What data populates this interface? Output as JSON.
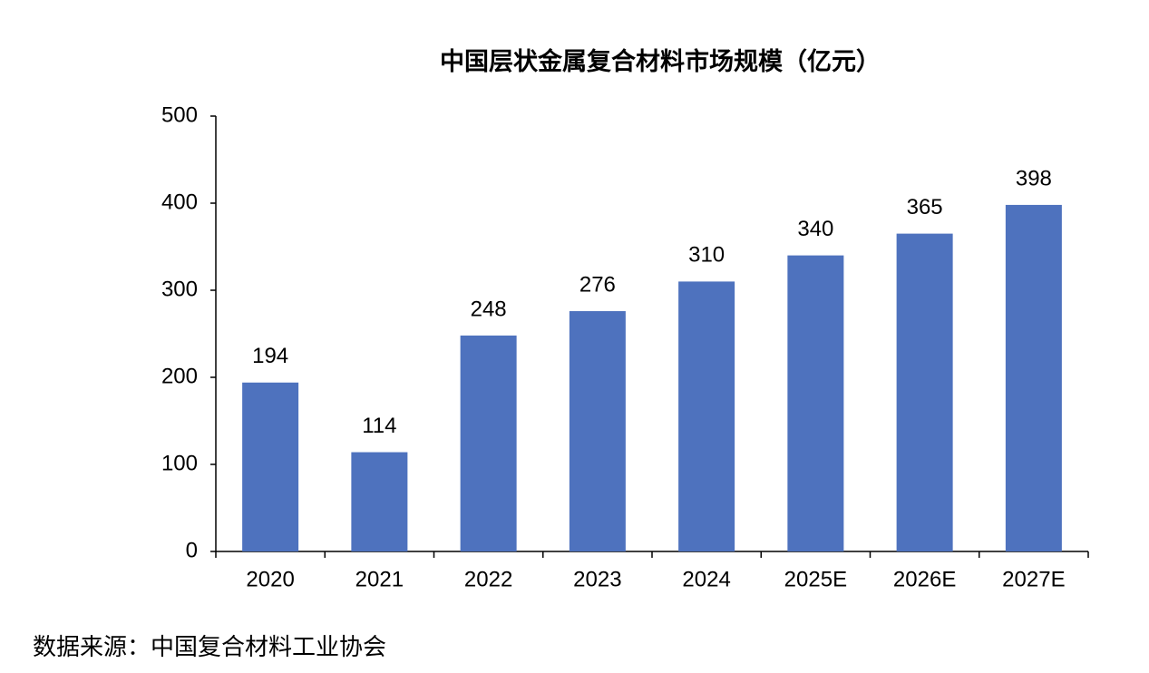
{
  "chart_data": {
    "type": "bar",
    "title": "中国层状金属复合材料市场规模（亿元）",
    "categories": [
      "2020",
      "2021",
      "2022",
      "2023",
      "2024",
      "2025E",
      "2026E",
      "2027E"
    ],
    "values": [
      194,
      114,
      248,
      276,
      310,
      340,
      365,
      398
    ],
    "color": "#4e72be",
    "ylim": [
      0,
      500
    ],
    "yticks": [
      0,
      100,
      200,
      300,
      400,
      500
    ],
    "grid": false
  },
  "source": "数据来源：中国复合材料工业协会"
}
